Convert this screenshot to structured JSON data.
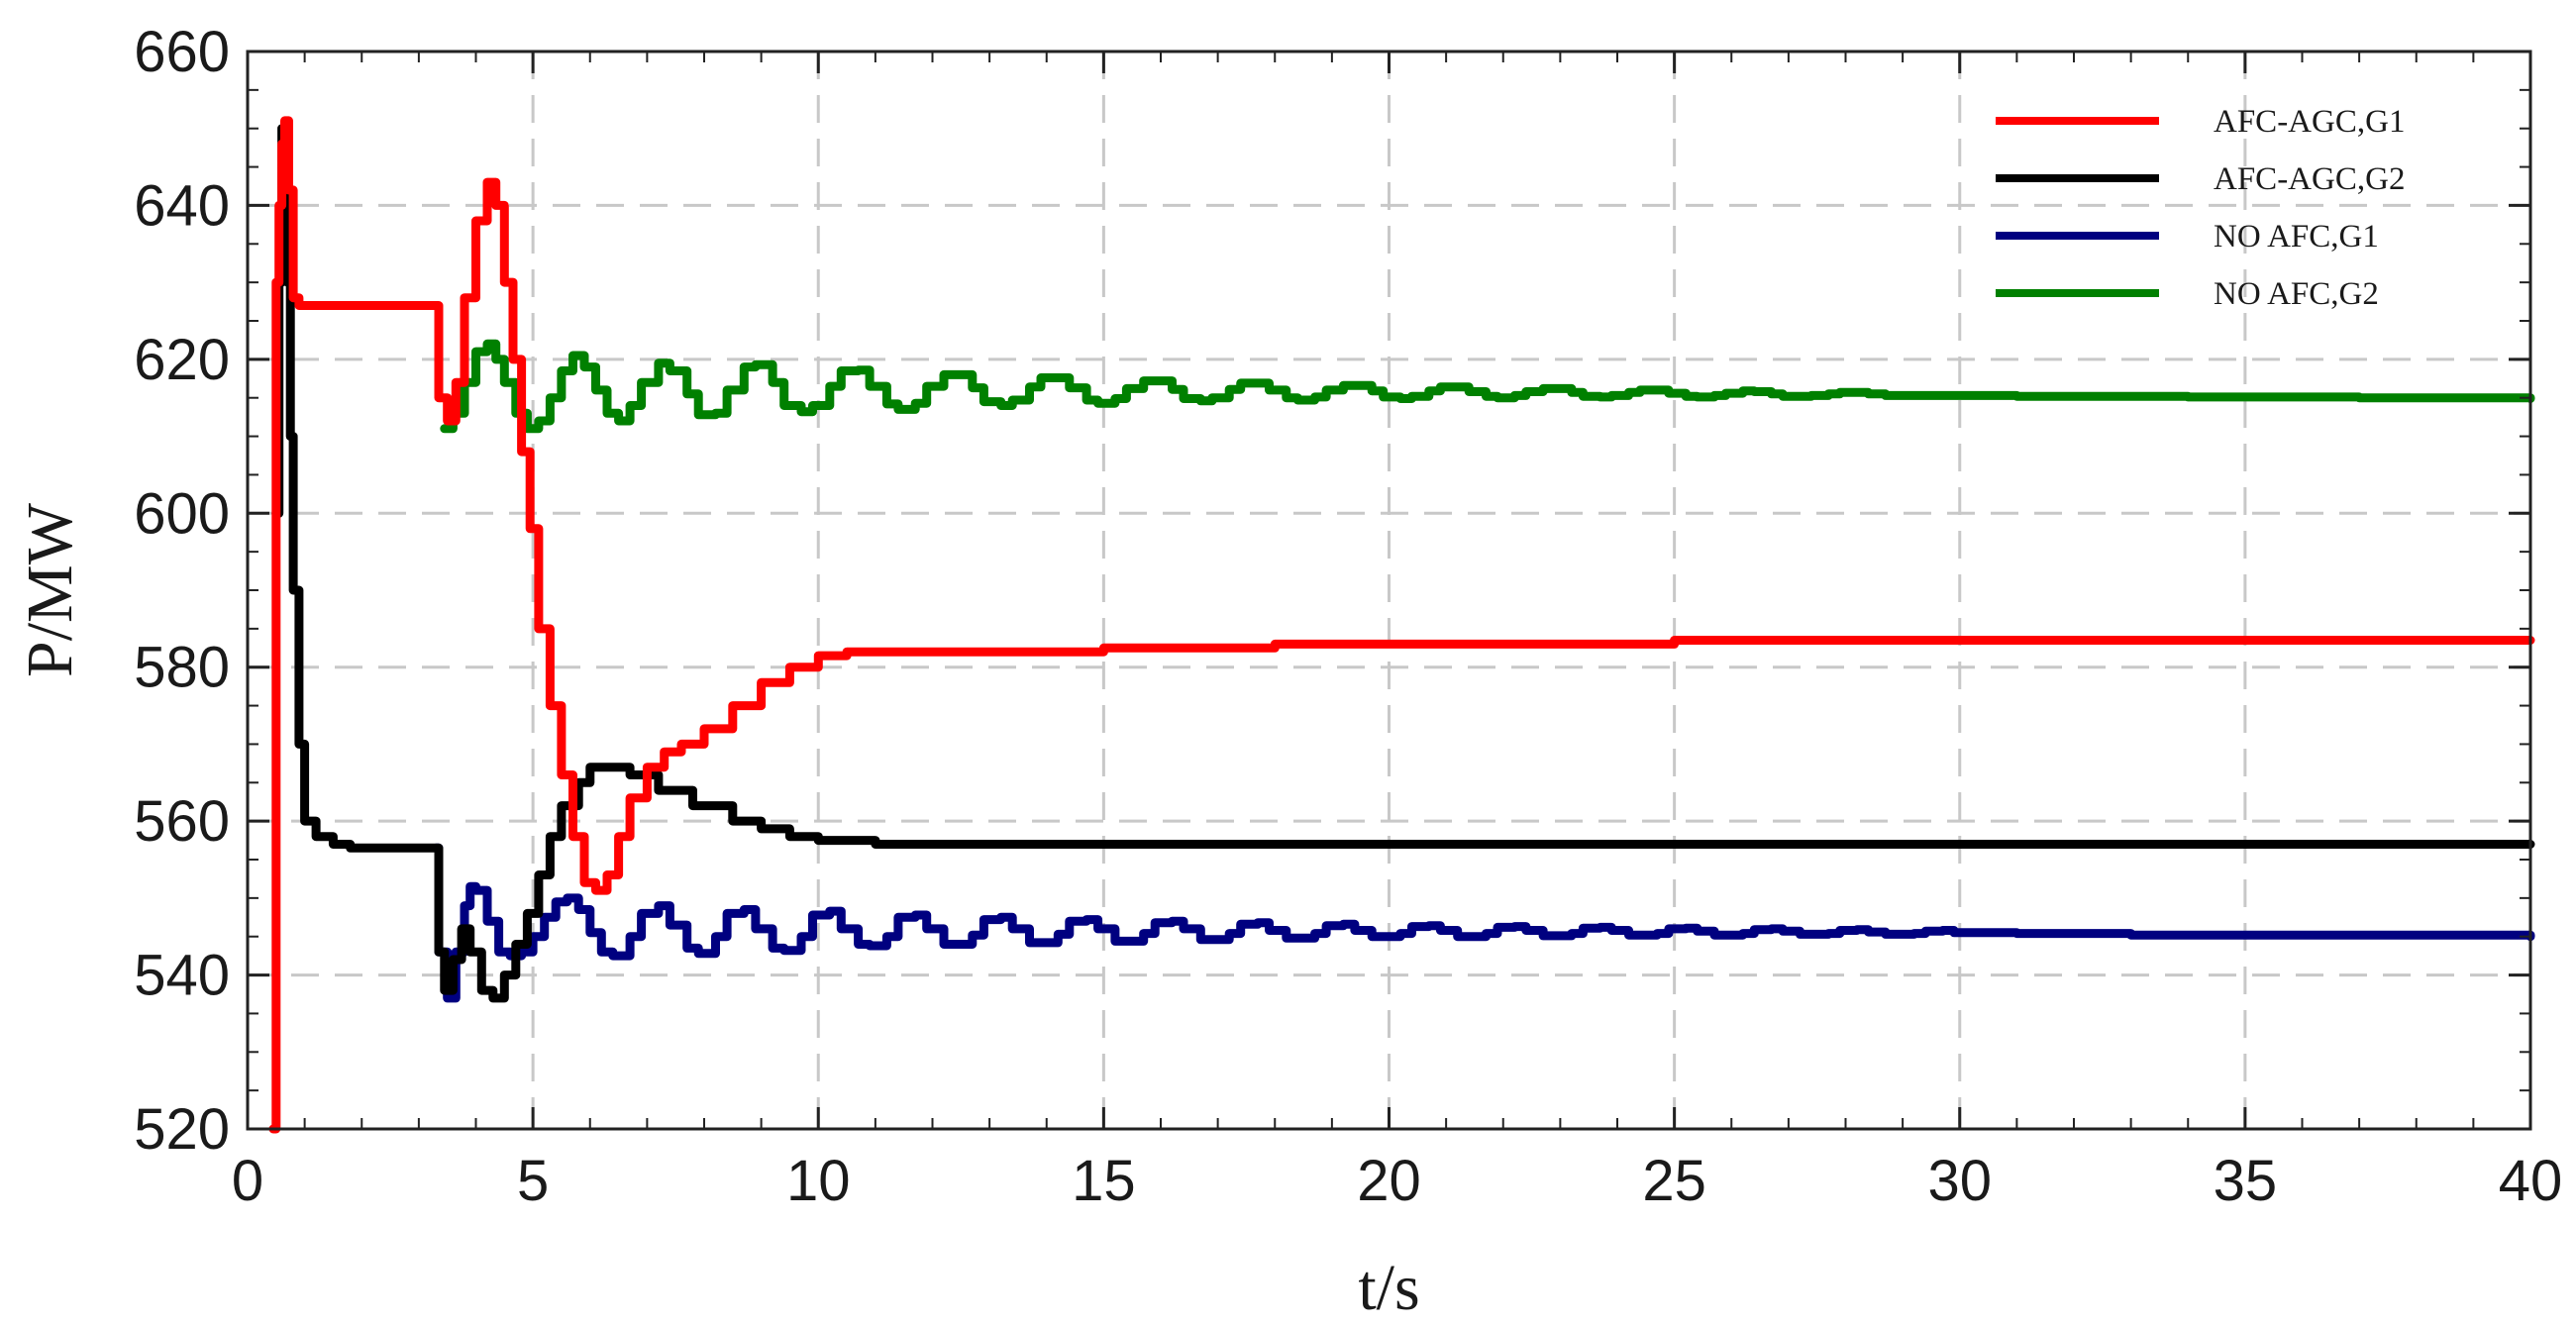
{
  "chart_data": {
    "type": "line",
    "xlabel": "t/s",
    "ylabel": "P/MW",
    "xlim": [
      0,
      40
    ],
    "ylim": [
      520,
      660
    ],
    "xticks": [
      0,
      5,
      10,
      15,
      20,
      25,
      30,
      35,
      40
    ],
    "yticks": [
      520,
      540,
      560,
      580,
      600,
      620,
      640,
      660
    ],
    "grid": true,
    "legend_position": "top-right",
    "series": [
      {
        "name": "AFC-AGC,G1",
        "color": "#ff0000",
        "x": [
          0.45,
          0.5,
          0.55,
          0.6,
          0.65,
          0.72,
          0.8,
          0.9,
          1.0,
          1.2,
          1.5,
          2.0,
          2.5,
          3.0,
          3.3,
          3.35,
          3.5,
          3.65,
          3.8,
          4.0,
          4.2,
          4.35,
          4.5,
          4.65,
          4.8,
          4.95,
          5.1,
          5.3,
          5.5,
          5.7,
          5.9,
          6.1,
          6.3,
          6.5,
          6.7,
          7.0,
          7.3,
          7.6,
          8.0,
          8.5,
          9.0,
          9.5,
          10.0,
          10.5,
          12.0,
          15.0,
          18.0,
          25.0,
          40.0
        ],
        "y": [
          520,
          630,
          640,
          648,
          651,
          642,
          628,
          627,
          627,
          627,
          627,
          627,
          627,
          627,
          627,
          615,
          612,
          617,
          628,
          638,
          643,
          640,
          630,
          620,
          608,
          598,
          585,
          575,
          566,
          558,
          552,
          551,
          553,
          558,
          563,
          567,
          569,
          570,
          572,
          575,
          578,
          580,
          581.5,
          582,
          582,
          582.5,
          583,
          583.5,
          583.5
        ]
      },
      {
        "name": "AFC-AGC,G2",
        "color": "#000000",
        "x": [
          0.5,
          0.55,
          0.6,
          0.65,
          0.7,
          0.75,
          0.8,
          0.9,
          1.0,
          1.2,
          1.5,
          1.8,
          2.5,
          3.0,
          3.3,
          3.35,
          3.45,
          3.6,
          3.75,
          3.9,
          4.1,
          4.3,
          4.5,
          4.7,
          4.9,
          5.1,
          5.3,
          5.5,
          5.8,
          6.0,
          6.3,
          6.7,
          7.2,
          7.8,
          8.5,
          9.0,
          9.5,
          10.0,
          11.0,
          15.0,
          20.0,
          30.0,
          40.0
        ],
        "y": [
          600,
          630,
          650,
          645,
          630,
          610,
          590,
          570,
          560,
          558,
          557,
          556.5,
          556.5,
          556.5,
          556.5,
          543,
          538,
          542,
          546,
          543,
          538,
          537,
          540,
          544,
          548,
          553,
          558,
          562,
          565,
          567,
          567,
          566,
          564,
          562,
          560,
          559,
          558,
          557.5,
          557,
          557,
          557,
          557,
          557
        ]
      },
      {
        "name": "NO AFC,G1",
        "color": "#000080",
        "x": [
          3.3,
          3.35,
          3.5,
          3.65,
          3.8,
          3.9,
          4.0,
          4.2,
          4.4,
          4.6,
          4.8,
          5.0,
          5.2,
          5.4,
          5.6,
          5.8,
          6.0,
          6.2,
          6.4,
          6.7,
          6.9,
          7.2,
          7.4,
          7.7,
          7.9,
          8.2,
          8.4,
          8.7,
          8.9,
          9.2,
          9.4,
          9.7,
          9.9,
          10.2,
          10.4,
          10.7,
          10.9,
          11.2,
          11.4,
          11.7,
          11.9,
          12.2,
          12.4,
          12.7,
          12.9,
          13.2,
          13.4,
          13.7,
          13.9,
          14.2,
          14.4,
          14.7,
          14.9,
          15.2,
          15.4,
          15.7,
          15.9,
          16.2,
          16.4,
          16.7,
          16.9,
          17.2,
          17.4,
          17.7,
          17.9,
          18.2,
          18.4,
          18.7,
          18.9,
          19.2,
          19.4,
          19.7,
          19.9,
          20.2,
          20.4,
          20.7,
          20.9,
          21.2,
          21.4,
          21.7,
          21.9,
          22.2,
          22.4,
          22.7,
          22.9,
          23.2,
          23.4,
          23.7,
          23.9,
          24.2,
          24.4,
          24.7,
          24.9,
          25.2,
          25.4,
          25.7,
          25.9,
          26.2,
          26.4,
          26.7,
          26.9,
          27.2,
          27.4,
          27.7,
          27.9,
          28.2,
          28.4,
          28.7,
          28.9,
          29.2,
          29.4,
          29.7,
          29.9,
          31.0,
          33.0,
          35.0,
          37.0,
          40.0
        ],
        "y": [
          556.5,
          543,
          537,
          543,
          549,
          551.5,
          551,
          547,
          543,
          542.5,
          543,
          545,
          547.5,
          549.5,
          550,
          548.5,
          545.5,
          543,
          542.5,
          545,
          548,
          549,
          546.5,
          543.5,
          542.8,
          545,
          548,
          548.5,
          546,
          543.5,
          543.2,
          545,
          547.8,
          548.3,
          546,
          544,
          543.8,
          545,
          547.5,
          547.8,
          546,
          544,
          544,
          545.2,
          547.2,
          547.5,
          546,
          544.2,
          544.2,
          545.3,
          547,
          547.2,
          546,
          544.4,
          544.4,
          545.4,
          546.8,
          547,
          546,
          544.6,
          544.6,
          545.4,
          546.6,
          546.8,
          545.8,
          544.8,
          544.8,
          545.4,
          546.4,
          546.6,
          545.8,
          545,
          545,
          545.4,
          546.3,
          546.4,
          545.8,
          545,
          545,
          545.4,
          546.2,
          546.3,
          545.8,
          545.1,
          545.1,
          545.4,
          546.1,
          546.2,
          545.8,
          545.2,
          545.2,
          545.4,
          546,
          546.1,
          545.7,
          545.2,
          545.2,
          545.4,
          545.9,
          546,
          545.7,
          545.3,
          545.3,
          545.4,
          545.8,
          545.9,
          545.6,
          545.3,
          545.3,
          545.4,
          545.7,
          545.8,
          545.5,
          545.4,
          545.2,
          545.2,
          545.2,
          545
        ]
      },
      {
        "name": "NO AFC,G2",
        "color": "#008000",
        "x": [
          3.45,
          3.6,
          3.8,
          4.0,
          4.2,
          4.35,
          4.5,
          4.7,
          4.9,
          5.1,
          5.3,
          5.5,
          5.7,
          5.9,
          6.1,
          6.3,
          6.5,
          6.7,
          6.9,
          7.2,
          7.4,
          7.7,
          7.9,
          8.2,
          8.4,
          8.7,
          8.9,
          9.2,
          9.4,
          9.7,
          9.9,
          10.2,
          10.4,
          10.7,
          10.9,
          11.2,
          11.4,
          11.7,
          11.9,
          12.2,
          12.4,
          12.7,
          12.9,
          13.2,
          13.4,
          13.7,
          13.9,
          14.2,
          14.4,
          14.7,
          14.9,
          15.2,
          15.4,
          15.7,
          15.9,
          16.2,
          16.4,
          16.7,
          16.9,
          17.2,
          17.4,
          17.7,
          17.9,
          18.2,
          18.4,
          18.7,
          18.9,
          19.2,
          19.4,
          19.7,
          19.9,
          20.2,
          20.4,
          20.7,
          20.9,
          21.2,
          21.4,
          21.7,
          21.9,
          22.2,
          22.4,
          22.7,
          22.9,
          23.2,
          23.4,
          23.7,
          23.9,
          24.2,
          24.4,
          24.7,
          24.9,
          25.2,
          25.4,
          25.7,
          25.9,
          26.2,
          26.4,
          26.7,
          26.9,
          27.2,
          27.4,
          27.7,
          27.9,
          28.2,
          28.4,
          28.7,
          28.9,
          31.0,
          34.0,
          37.0,
          40.0
        ],
        "y": [
          611,
          613,
          617,
          621,
          622,
          620,
          617,
          613,
          611,
          612,
          615,
          618.5,
          620.5,
          619,
          616,
          613,
          612,
          614,
          617,
          619.5,
          618.5,
          615.5,
          612.8,
          613,
          616,
          619,
          619.3,
          617,
          614,
          613.2,
          614,
          616.5,
          618.5,
          618.6,
          616.5,
          614.2,
          613.5,
          614.3,
          616.5,
          618,
          618,
          616.3,
          614.5,
          614,
          614.7,
          616.4,
          617.6,
          617.6,
          616.3,
          614.7,
          614.3,
          614.9,
          616.2,
          617.2,
          617.2,
          616.1,
          614.9,
          614.6,
          615,
          616.1,
          616.9,
          616.9,
          616,
          615,
          614.7,
          615.1,
          616,
          616.6,
          616.6,
          615.9,
          615.1,
          614.9,
          615.2,
          615.9,
          616.4,
          616.4,
          615.8,
          615.2,
          615,
          615.3,
          615.8,
          616.2,
          616.2,
          615.7,
          615.2,
          615.1,
          615.3,
          615.7,
          616,
          616,
          615.6,
          615.2,
          615.1,
          615.3,
          615.6,
          615.9,
          615.8,
          615.5,
          615.2,
          615.2,
          615.3,
          615.5,
          615.7,
          615.7,
          615.5,
          615.3,
          615.3,
          615.2,
          615.1,
          615,
          614.9
        ]
      }
    ]
  }
}
